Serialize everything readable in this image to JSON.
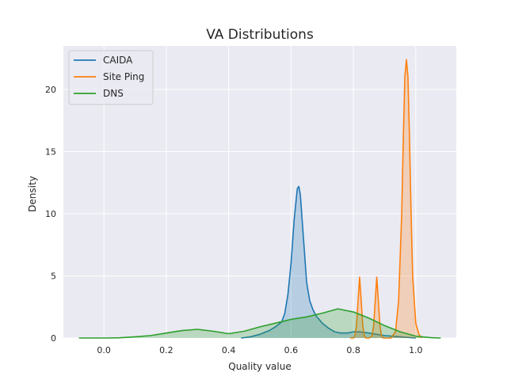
{
  "chart_data": {
    "type": "area",
    "title": "VA Distributions",
    "xlabel": "Quality value",
    "ylabel": "Density",
    "xlim": [
      -0.13,
      1.13
    ],
    "ylim": [
      0,
      23.5
    ],
    "xticks": [
      0.0,
      0.2,
      0.4,
      0.6,
      0.8,
      1.0
    ],
    "xtick_labels": [
      "0.0",
      "0.2",
      "0.4",
      "0.6",
      "0.8",
      "1.0"
    ],
    "yticks": [
      0,
      5,
      10,
      15,
      20
    ],
    "ytick_labels": [
      "0",
      "5",
      "10",
      "15",
      "20"
    ],
    "grid": true,
    "legend_position": "upper-left",
    "background_color": "#eaeaf2",
    "grid_color": "#ffffff",
    "series": [
      {
        "name": "CAIDA",
        "color": "#1f77b4",
        "fill": true,
        "x": [
          0.44,
          0.47,
          0.5,
          0.53,
          0.55,
          0.57,
          0.58,
          0.59,
          0.6,
          0.61,
          0.62,
          0.625,
          0.63,
          0.64,
          0.65,
          0.66,
          0.67,
          0.68,
          0.7,
          0.72,
          0.74,
          0.76,
          0.78,
          0.8,
          0.82,
          0.85,
          0.9,
          0.95,
          1.0
        ],
        "y": [
          0.0,
          0.1,
          0.3,
          0.6,
          0.9,
          1.3,
          2.0,
          3.5,
          6.0,
          9.5,
          12.0,
          12.2,
          11.5,
          8.0,
          4.5,
          3.0,
          2.3,
          1.8,
          1.2,
          0.8,
          0.5,
          0.4,
          0.4,
          0.5,
          0.5,
          0.4,
          0.2,
          0.1,
          0.0
        ]
      },
      {
        "name": "Site Ping",
        "color": "#ff7f0e",
        "fill": true,
        "x": [
          0.79,
          0.8,
          0.805,
          0.81,
          0.815,
          0.82,
          0.825,
          0.83,
          0.835,
          0.84,
          0.85,
          0.86,
          0.865,
          0.87,
          0.875,
          0.88,
          0.885,
          0.89,
          0.895,
          0.9,
          0.92,
          0.935,
          0.945,
          0.955,
          0.96,
          0.965,
          0.97,
          0.975,
          0.98,
          0.985,
          0.99,
          1.0,
          1.01,
          1.02
        ],
        "y": [
          0.0,
          0.0,
          0.2,
          1.0,
          3.0,
          4.9,
          3.0,
          1.0,
          0.2,
          0.0,
          0.0,
          0.2,
          1.0,
          3.0,
          4.9,
          3.0,
          1.0,
          0.2,
          0.0,
          0.0,
          0.0,
          0.5,
          3.0,
          10.0,
          16.0,
          21.0,
          22.4,
          21.0,
          16.0,
          10.0,
          5.0,
          1.2,
          0.3,
          0.0
        ]
      },
      {
        "name": "DNS",
        "color": "#2ca02c",
        "fill": true,
        "x": [
          -0.08,
          0.0,
          0.05,
          0.1,
          0.15,
          0.2,
          0.25,
          0.3,
          0.35,
          0.4,
          0.45,
          0.5,
          0.55,
          0.6,
          0.65,
          0.7,
          0.75,
          0.8,
          0.85,
          0.9,
          0.95,
          1.0,
          1.05,
          1.08
        ],
        "y": [
          0.0,
          0.0,
          0.02,
          0.1,
          0.2,
          0.4,
          0.6,
          0.7,
          0.55,
          0.35,
          0.55,
          0.9,
          1.2,
          1.5,
          1.7,
          2.0,
          2.35,
          2.1,
          1.6,
          1.0,
          0.5,
          0.15,
          0.03,
          0.0
        ]
      }
    ]
  }
}
